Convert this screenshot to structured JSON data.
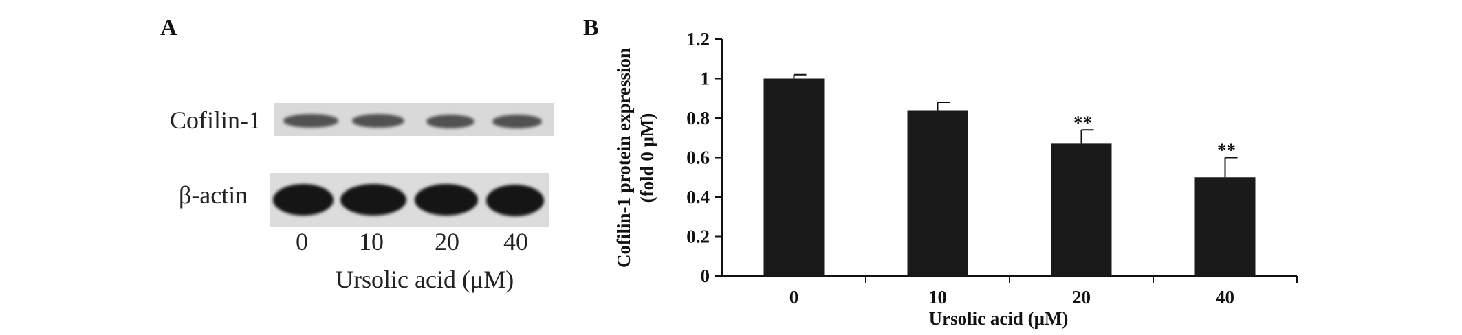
{
  "panel_a": {
    "letter": "A",
    "blot_rows": [
      {
        "label": "Cofilin-1",
        "band_intensity": [
          0.85,
          0.85,
          0.8,
          0.8
        ]
      },
      {
        "label": "β-actin",
        "band_intensity": [
          1.0,
          1.0,
          1.0,
          1.0
        ]
      }
    ],
    "lanes": [
      "0",
      "10",
      "20",
      "40"
    ],
    "xlabel": "Ursolic acid (μM)"
  },
  "panel_b": {
    "letter": "B"
  },
  "chart_data": {
    "type": "bar",
    "categories": [
      "0",
      "10",
      "20",
      "40"
    ],
    "values": [
      1.0,
      0.84,
      0.67,
      0.5
    ],
    "errors": [
      0.02,
      0.04,
      0.07,
      0.1
    ],
    "annotations": [
      "",
      "",
      "**",
      "**"
    ],
    "xlabel": "Ursolic acid (μM)",
    "ylabel_line1": "Cofilin-1 protein expression",
    "ylabel_line2": "(fold 0 μM)",
    "ylim": [
      0,
      1.2
    ],
    "yticks": [
      0,
      0.2,
      0.4,
      0.6,
      0.8,
      1,
      1.2
    ],
    "ytick_labels": [
      "0",
      "0.2",
      "0.4",
      "0.6",
      "0.8",
      "1",
      "1.2"
    ],
    "grid": false,
    "bar_color": "#1a1a1a"
  }
}
